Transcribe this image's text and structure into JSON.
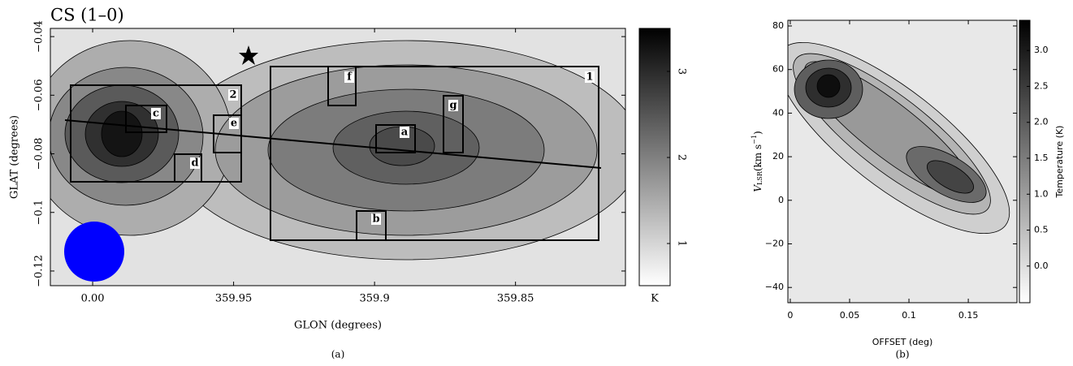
{
  "chart_data": [
    {
      "type": "heatmap",
      "title": "CS (1–0)",
      "xlabel": "GLON (degrees)",
      "ylabel": "GLAT (degrees)",
      "xlim": [
        360.015,
        359.811
      ],
      "xticks": [
        {
          "value": 360,
          "label": "0.00"
        },
        359.95,
        359.9,
        359.85
      ],
      "ylim": [
        -0.125,
        -0.0372
      ],
      "yticks": [
        {
          "value": -0.04,
          "label": "−0.04"
        },
        {
          "value": -0.06,
          "label": "−0.06"
        },
        {
          "value": -0.08,
          "label": "−0.08"
        },
        {
          "value": -0.1,
          "label": "−0.1"
        },
        {
          "value": -0.12,
          "label": "−0.12"
        }
      ],
      "clim": [
        0.51,
        3.5
      ],
      "cticks": [
        1,
        2,
        3
      ],
      "colorbar_label": "K",
      "colormap": [
        "#ffffff",
        "#000000"
      ],
      "regions": [
        "1",
        "2",
        "a",
        "b",
        "c",
        "d",
        "e",
        "f",
        "g"
      ],
      "caption": "(a)"
    },
    {
      "type": "heatmap",
      "xlabel": "OFFSET (deg)",
      "ylabel_parts": [
        "V",
        "LSR",
        "(km s",
        "−1",
        ")"
      ],
      "xlim": [
        -0.002,
        0.191
      ],
      "xticks": [
        0,
        0.05,
        0.1,
        0.15
      ],
      "ylim": [
        -47,
        82.6
      ],
      "yticks": [
        80,
        60,
        40,
        20,
        0,
        {
          "value": -20,
          "label": "−20"
        },
        {
          "value": -40,
          "label": "−40"
        }
      ],
      "clim": [
        -0.51,
        3.42
      ],
      "cticks": [
        {
          "value": 3,
          "label": "3.0"
        },
        2.5,
        {
          "value": 2,
          "label": "2.0"
        },
        1.5,
        {
          "value": 1,
          "label": "1.0"
        },
        0.5,
        {
          "value": 0,
          "label": "0.0"
        }
      ],
      "colorbar_label": "Temperature (K)",
      "colormap": [
        "#ffffff",
        "#000000"
      ],
      "caption": "(b)"
    }
  ]
}
